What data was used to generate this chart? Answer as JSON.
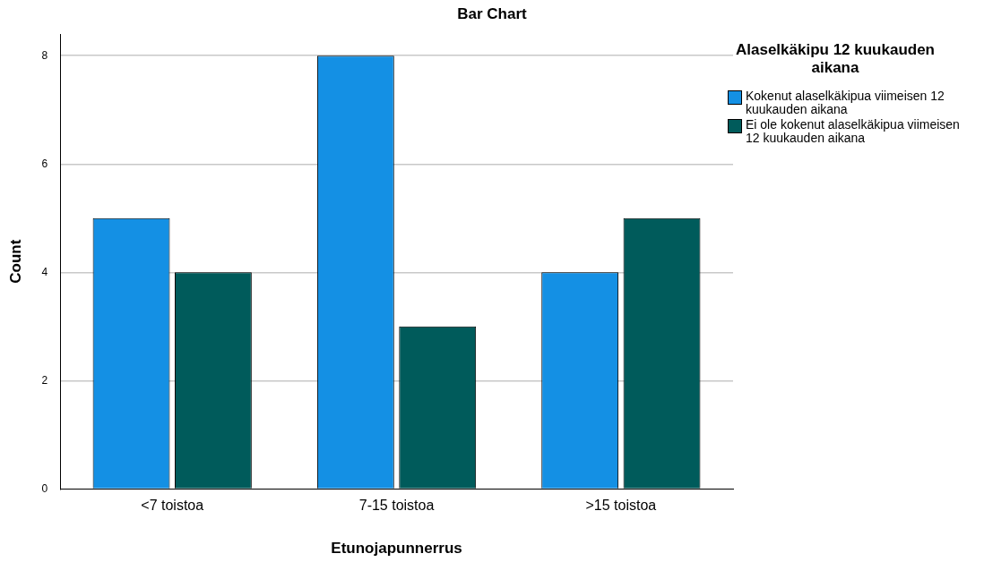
{
  "chart_data": {
    "type": "bar",
    "title": "Bar Chart",
    "xlabel": "Etunojapunnerrus",
    "ylabel": "Count",
    "legend_title": "Alaselkäkipu 12 kuukauden aikana",
    "categories": [
      "<7 toistoa",
      "7-15 toistoa",
      ">15 toistoa"
    ],
    "series": [
      {
        "name": "Kokenut alaselkäkipua viimeisen 12 kuukauden aikana",
        "color": "#1490e4",
        "values": [
          5,
          8,
          4
        ]
      },
      {
        "name": "Ei ole kokenut alaselkäkipua viimeisen 12 kuukauden aikana",
        "color": "#005b5b",
        "values": [
          4,
          3,
          5
        ]
      }
    ],
    "ylim": [
      0,
      8.4
    ],
    "yticks": [
      0,
      2,
      4,
      6,
      8
    ],
    "grid": "y",
    "legend": "right"
  }
}
